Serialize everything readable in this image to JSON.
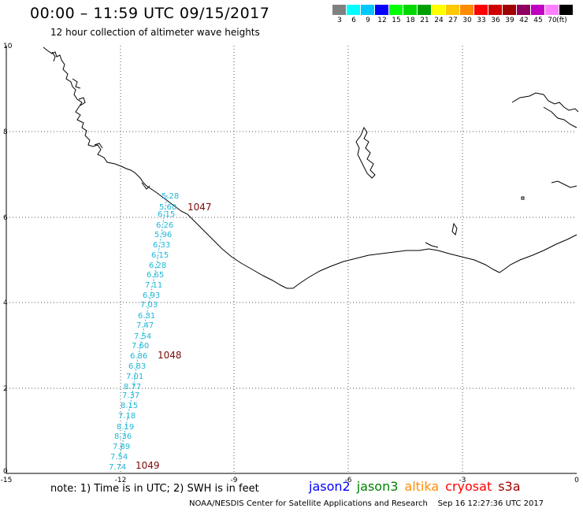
{
  "header": {
    "title": "00:00 – 11:59 UTC 09/15/2017",
    "subtitle": "12 hour collection of altimeter wave heights"
  },
  "legend": {
    "colors": [
      "#808080",
      "#00ffff",
      "#00c8ff",
      "#0000ff",
      "#00ff00",
      "#00d800",
      "#00a000",
      "#ffff00",
      "#ffc800",
      "#ff8c00",
      "#ff0000",
      "#d00000",
      "#a00000",
      "#900060",
      "#c000c0",
      "#ff80ff",
      "#000000"
    ],
    "labels": [
      "3",
      "6",
      "9",
      "12",
      "15",
      "18",
      "21",
      "24",
      "27",
      "30",
      "33",
      "36",
      "39",
      "42",
      "45",
      "70",
      "(ft)"
    ]
  },
  "axes": {
    "x_ticks": [
      "-15",
      "-12",
      "-9",
      "-6",
      "-3",
      "0"
    ],
    "y_ticks": [
      "0",
      "2",
      "4",
      "6",
      "8",
      "10"
    ]
  },
  "tracks": {
    "swh_values": [
      "5.28",
      "5.60",
      "6.15",
      "6.26",
      "5.96",
      "6.33",
      "6.15",
      "6.28",
      "6.65",
      "7.11",
      "6.93",
      "7.03",
      "6.31",
      "7.47",
      "7.54",
      "7.60",
      "6.86",
      "6.83",
      "7.01",
      "8.77",
      "7.37",
      "8.15",
      "7.18",
      "8.19",
      "8.36",
      "7.89",
      "7.54",
      "7.74"
    ],
    "time_labels": [
      "1047",
      "1048",
      "1049"
    ]
  },
  "footer": {
    "note": "note: 1) Time is in UTC; 2) SWH is in feet",
    "satellites": [
      {
        "name": "jason2",
        "color": "#0000ff"
      },
      {
        "name": "jason3",
        "color": "#008000"
      },
      {
        "name": "altika",
        "color": "#ff8c00"
      },
      {
        "name": "cryosat",
        "color": "#ff0000"
      },
      {
        "name": "s3a",
        "color": "#a00000"
      }
    ],
    "credit": "NOAA/NESDIS Center for Satellite Applications and Research    Sep 16 12:27:36 UTC 2017"
  }
}
